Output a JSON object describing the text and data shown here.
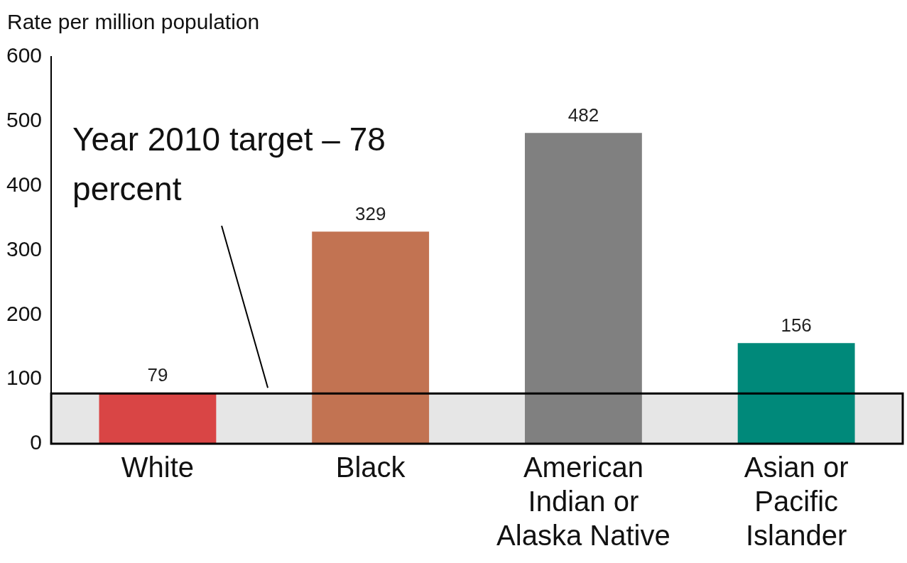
{
  "chart_data": {
    "type": "bar",
    "ylabel": "Rate per million population",
    "categories": [
      "White",
      "Black",
      "American Indian or Alaska Native",
      "Asian or Pacific Islander"
    ],
    "values": [
      79,
      329,
      482,
      156
    ],
    "colors": [
      "#d94545",
      "#c27352",
      "#808080",
      "#00897a"
    ],
    "ylim": [
      0,
      600
    ],
    "yticks": [
      0,
      100,
      200,
      300,
      400,
      500,
      600
    ],
    "grid": false,
    "legend": false,
    "data_labels": true,
    "bands": [
      {
        "axis": "y",
        "from": 0,
        "to": 78,
        "label": "Year 2010 target – 78 percent",
        "color": "#e6e6e6"
      }
    ]
  }
}
